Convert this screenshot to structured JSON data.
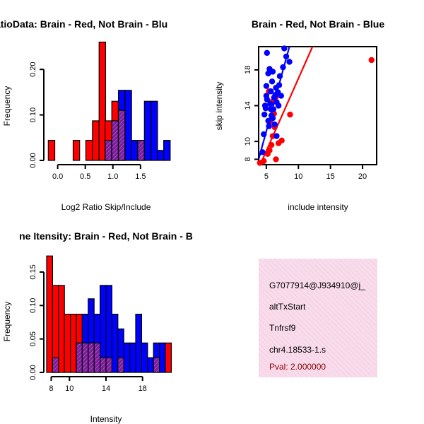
{
  "chart_data": [
    {
      "type": "bar",
      "title": "RatioData: Brain - Red, Not Brain - Blu",
      "xlabel": "Log2 Ratio Skip/Include",
      "ylabel": "Frequency",
      "xlim": [
        -0.2,
        1.95
      ],
      "ylim": [
        0,
        0.25
      ],
      "xticks": [
        "0.0",
        "0.5",
        "1.0",
        "1.5"
      ],
      "xtick_values": [
        0,
        0.5,
        1,
        1.5
      ],
      "yticks": [
        "0.00",
        "0.10",
        "0.20"
      ],
      "ytick_values": [
        0,
        0.1,
        0.2
      ],
      "bin_width": 0.1176,
      "series": [
        {
          "name": "Brain",
          "color": "#ff0000",
          "bins": [
            [
              -0.17,
              0.044
            ],
            [
              0.28,
              0.044
            ],
            [
              0.51,
              0.044
            ],
            [
              0.63,
              0.087
            ],
            [
              0.75,
              0.26
            ],
            [
              0.86,
              0.087
            ],
            [
              0.98,
              0.13
            ],
            [
              1.1,
              0.13
            ]
          ]
        },
        {
          "name": "Not Brain",
          "color": "#0000ff",
          "bins": [
            [
              0.86,
              0.044
            ],
            [
              0.98,
              0.087
            ],
            [
              1.1,
              0.154
            ],
            [
              1.22,
              0.154
            ],
            [
              1.33,
              0.044
            ],
            [
              1.45,
              0.044
            ],
            [
              1.57,
              0.13
            ],
            [
              1.69,
              0.13
            ],
            [
              1.81,
              0.022
            ],
            [
              1.92,
              0.044
            ]
          ]
        },
        {
          "name": "Overlap",
          "color": "#7a1f9a",
          "bins": [
            [
              0.86,
              0.044
            ],
            [
              0.98,
              0.087
            ],
            [
              1.1,
              0.11
            ],
            [
              1.45,
              0.044
            ]
          ]
        }
      ]
    },
    {
      "type": "scatter",
      "title": "Brain - Red, Not Brain - Blue",
      "xlabel": "include intensity",
      "ylabel": "skip intensity",
      "xlim": [
        3.8,
        22.2
      ],
      "ylim": [
        7.4,
        20.6
      ],
      "xticks": [
        "5",
        "10",
        "15",
        "20"
      ],
      "xtick_values": [
        5,
        10,
        15,
        20
      ],
      "yticks": [
        "8",
        "10",
        "14",
        "18"
      ],
      "ytick_values": [
        8,
        10,
        14,
        18
      ],
      "series": [
        {
          "name": "Brain",
          "color": "#ff0000",
          "points": [
            [
              4.0,
              7.6
            ],
            [
              4.6,
              7.8
            ],
            [
              5.2,
              8.6
            ],
            [
              5.5,
              9.0
            ],
            [
              5.8,
              9.6
            ],
            [
              6.0,
              10.6
            ],
            [
              6.3,
              11.6
            ],
            [
              5.6,
              12.2
            ],
            [
              6.2,
              13.1
            ],
            [
              5.7,
              14.4
            ],
            [
              6.5,
              15.0
            ],
            [
              5.4,
              15.6
            ],
            [
              6.9,
              9.8
            ],
            [
              7.4,
              10.1
            ],
            [
              6.5,
              8.0
            ],
            [
              8.7,
              13.0
            ],
            [
              21.4,
              19.1
            ]
          ],
          "fit": [
            [
              3.8,
              7.0
            ],
            [
              12.2,
              20.6
            ]
          ]
        },
        {
          "name": "Not Brain",
          "color": "#0000ff",
          "points": [
            [
              4.4,
              8.8
            ],
            [
              4.6,
              10.8
            ],
            [
              4.7,
              13.0
            ],
            [
              4.8,
              14.0
            ],
            [
              5.0,
              15.1
            ],
            [
              5.0,
              16.2
            ],
            [
              5.1,
              14.7
            ],
            [
              5.3,
              12.3
            ],
            [
              5.3,
              17.6
            ],
            [
              5.5,
              18.1
            ],
            [
              5.1,
              19.9
            ],
            [
              5.6,
              14.2
            ],
            [
              5.7,
              15.6
            ],
            [
              5.8,
              12.9
            ],
            [
              5.9,
              16.7
            ],
            [
              6.0,
              17.8
            ],
            [
              6.1,
              13.6
            ],
            [
              6.2,
              14.9
            ],
            [
              6.3,
              11.9
            ],
            [
              6.4,
              15.2
            ],
            [
              6.5,
              16.0
            ],
            [
              6.6,
              14.4
            ],
            [
              6.8,
              15.5
            ],
            [
              7.0,
              16.3
            ],
            [
              7.1,
              17.3
            ],
            [
              7.3,
              15.1
            ],
            [
              7.6,
              18.3
            ],
            [
              7.8,
              20.4
            ],
            [
              8.1,
              19.5
            ],
            [
              8.6,
              18.9
            ],
            [
              5.7,
              13.6
            ],
            [
              6.9,
              14.0
            ],
            [
              6.0,
              12.6
            ],
            [
              5.4,
              11.7
            ],
            [
              4.9,
              13.7
            ],
            [
              6.6,
              10.6
            ]
          ],
          "fit": [
            [
              3.8,
              8.0
            ],
            [
              8.6,
              20.6
            ]
          ]
        }
      ]
    },
    {
      "type": "bar",
      "title": "ne Itensity: Brain - Red, Not Brain - B",
      "xlabel": "Intensity",
      "ylabel": "Frequency",
      "xlim": [
        7.5,
        20.5
      ],
      "ylim": [
        0,
        0.17
      ],
      "xticks": [
        "8",
        "10",
        "14",
        "18"
      ],
      "xtick_values": [
        8,
        10,
        14,
        18
      ],
      "yticks": [
        "0.00",
        "0.05",
        "0.10",
        "0.15"
      ],
      "ytick_values": [
        0,
        0.05,
        0.1,
        0.15
      ],
      "bin_width": 0.65,
      "series": [
        {
          "name": "Brain",
          "color": "#ff0000",
          "bins": [
            [
              7.5,
              0.174
            ],
            [
              8.15,
              0.13
            ],
            [
              8.8,
              0.13
            ],
            [
              9.45,
              0.087
            ],
            [
              10.1,
              0.087
            ],
            [
              10.75,
              0.087
            ],
            [
              11.4,
              0.065
            ],
            [
              20.5,
              0.044
            ]
          ]
        },
        {
          "name": "Not Brain",
          "color": "#0000ff",
          "bins": [
            [
              8.15,
              0.022
            ],
            [
              10.75,
              0.044
            ],
            [
              11.4,
              0.087
            ],
            [
              12.05,
              0.11
            ],
            [
              12.7,
              0.087
            ],
            [
              13.35,
              0.13
            ],
            [
              14.0,
              0.13
            ],
            [
              14.65,
              0.087
            ],
            [
              15.3,
              0.065
            ],
            [
              15.95,
              0.044
            ],
            [
              16.6,
              0.044
            ],
            [
              17.25,
              0.087
            ],
            [
              17.9,
              0.044
            ],
            [
              18.55,
              0.022
            ],
            [
              19.2,
              0.044
            ],
            [
              19.85,
              0.044
            ]
          ]
        },
        {
          "name": "Overlap",
          "color": "#7a1f9a",
          "bins": [
            [
              8.15,
              0.022
            ],
            [
              10.75,
              0.044
            ],
            [
              11.4,
              0.044
            ],
            [
              12.05,
              0.044
            ],
            [
              12.7,
              0.044
            ],
            [
              13.35,
              0.022
            ],
            [
              14.0,
              0.022
            ],
            [
              15.3,
              0.022
            ],
            [
              19.2,
              0.022
            ]
          ]
        }
      ]
    }
  ],
  "info_box": {
    "id": "G7077914@J934910@j_",
    "event": "altTxStart",
    "gene": "Tnfrsf9",
    "location": "chr4.18533-1.s",
    "pval": "Pval: 2.000000",
    "background": "#f9dcec",
    "hatch": "#e8b0cc"
  }
}
